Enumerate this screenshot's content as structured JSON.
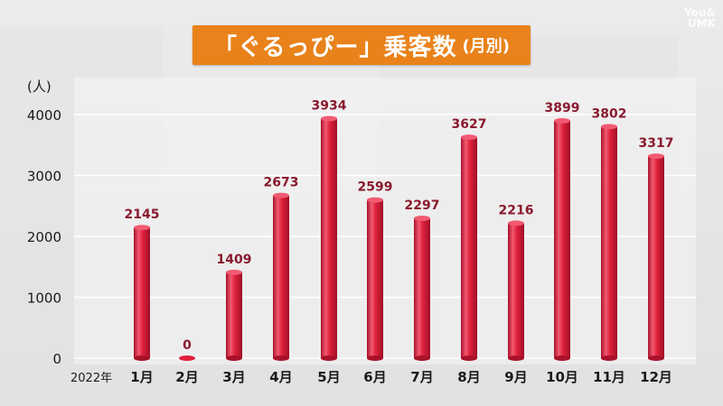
{
  "watermark": {
    "line1": "You&",
    "line2": "UMK"
  },
  "chart_data": {
    "type": "bar",
    "title": "「ぐるっぴー」乗客数",
    "subtitle": "(月別)",
    "ylabel": "(人)",
    "year_label": "2022年",
    "categories": [
      "1月",
      "2月",
      "3月",
      "4月",
      "5月",
      "6月",
      "7月",
      "8月",
      "9月",
      "10月",
      "11月",
      "12月"
    ],
    "values": [
      2145,
      0,
      1409,
      2673,
      3934,
      2599,
      2297,
      3627,
      2216,
      3899,
      3802,
      3317
    ],
    "ylim": [
      0,
      4000
    ],
    "yticks": [
      0,
      1000,
      2000,
      3000,
      4000
    ],
    "grid": true,
    "legend": "none"
  },
  "colors": {
    "bar": "#e0203c",
    "bar_dark": "#a8122a",
    "bar_light": "#f15a72",
    "grid": "#ffffff",
    "title_bg": "#e9821a"
  }
}
